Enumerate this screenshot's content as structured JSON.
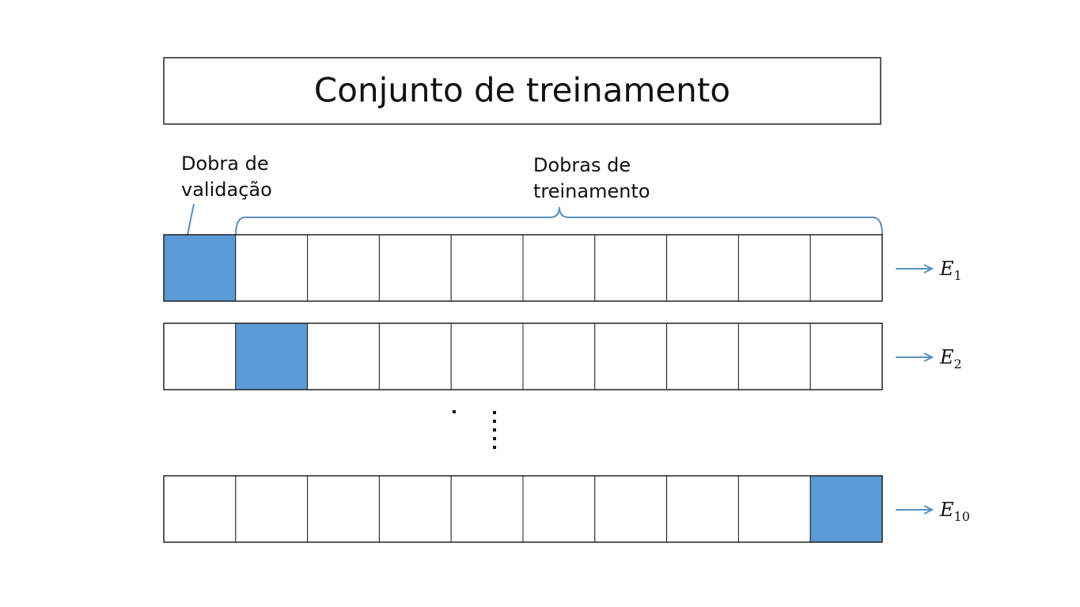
{
  "header": {
    "title": "Conjunto de treinamento"
  },
  "validation_label": {
    "lines": [
      "Dobra de",
      "validação"
    ]
  },
  "training_label": {
    "lines": [
      "Dobras de",
      "treinamento"
    ]
  },
  "rows": [
    {
      "symbol": "E",
      "index": "1"
    },
    {
      "symbol": "E",
      "index": "2"
    },
    {
      "symbol": "E",
      "index": "10"
    }
  ]
}
